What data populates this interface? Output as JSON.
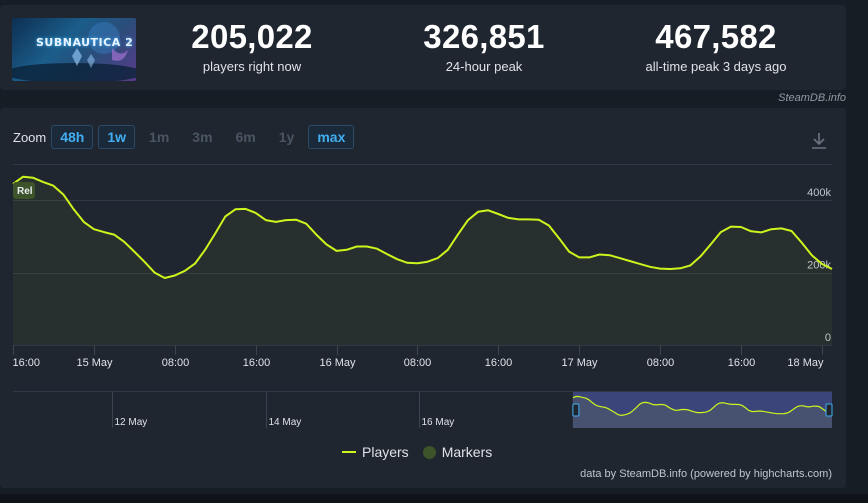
{
  "stats": {
    "current": {
      "value": "205,022",
      "label": "players right now"
    },
    "peak24": {
      "value": "326,851",
      "label": "24-hour peak"
    },
    "alltime": {
      "value": "467,582",
      "label": "all-time peak 3 days ago"
    }
  },
  "game": {
    "logo_text": "SUBNAUTICA 2"
  },
  "credit": "SteamDB.info",
  "zoom": {
    "label": "Zoom",
    "buttons": [
      {
        "label": "48h",
        "active": true
      },
      {
        "label": "1w",
        "active": true
      },
      {
        "label": "1m",
        "active": false
      },
      {
        "label": "3m",
        "active": false
      },
      {
        "label": "6m",
        "active": false
      },
      {
        "label": "1y",
        "active": false
      },
      {
        "label": "max",
        "active": true
      }
    ]
  },
  "marker_label": "Rel",
  "navigator_labels": [
    "12 May",
    "14 May",
    "16 May"
  ],
  "legend": {
    "players": "Players",
    "markers": "Markers"
  },
  "powered_by": "data by SteamDB.info (powered by highcharts.com)",
  "chart_data": {
    "type": "line",
    "title": "",
    "xlabel": "",
    "ylabel": "",
    "ylim": [
      0,
      500000
    ],
    "yticks": [
      0,
      200000,
      400000
    ],
    "ytick_labels": [
      "0",
      "200k",
      "400k"
    ],
    "xtick_labels": [
      "16:00",
      "15 May",
      "08:00",
      "16:00",
      "16 May",
      "08:00",
      "16:00",
      "17 May",
      "08:00",
      "16:00",
      "18 May"
    ],
    "x_hours": [
      0,
      8,
      16,
      24,
      32,
      40,
      48,
      56,
      64,
      72,
      80
    ],
    "series": [
      {
        "name": "Players",
        "color": "#ccf51d",
        "x": [
          0,
          1,
          2,
          3,
          4,
          5,
          6,
          7,
          8,
          9,
          10,
          11,
          12,
          13,
          14,
          15,
          16,
          17,
          18,
          19,
          20,
          21,
          22,
          23,
          24,
          25,
          26,
          27,
          28,
          29,
          30,
          31,
          32,
          33,
          34,
          35,
          36,
          37,
          38,
          39,
          40,
          41,
          42,
          43,
          44,
          45,
          46,
          47,
          48,
          49,
          50,
          51,
          52,
          53,
          54,
          55,
          56,
          57,
          58,
          59,
          60,
          61,
          62,
          63,
          64,
          65,
          66,
          67,
          68,
          69,
          70,
          71,
          72,
          73,
          74,
          75,
          76,
          77,
          78,
          79,
          80,
          81
        ],
        "y": [
          445000,
          465000,
          462000,
          450000,
          440000,
          415000,
          375000,
          340000,
          320000,
          312000,
          305000,
          285000,
          258000,
          230000,
          200000,
          185000,
          192000,
          205000,
          225000,
          263000,
          308000,
          355000,
          375000,
          376000,
          365000,
          345000,
          340000,
          345000,
          346000,
          335000,
          305000,
          278000,
          260000,
          263000,
          272000,
          272000,
          266000,
          251000,
          237000,
          227000,
          226000,
          230000,
          240000,
          263000,
          305000,
          345000,
          368000,
          372000,
          362000,
          351000,
          347000,
          347000,
          346000,
          330000,
          295000,
          258000,
          242000,
          242000,
          250000,
          248000,
          240000,
          232000,
          224000,
          216000,
          211000,
          210000,
          212000,
          220000,
          245000,
          278000,
          312000,
          327000,
          326000,
          314000,
          311000,
          320000,
          322000,
          315000,
          283000,
          248000,
          224000,
          210000
        ]
      }
    ],
    "markers": [
      {
        "x": 0,
        "label": "Rel"
      }
    ],
    "navigator_range_hours": [
      -175,
      81
    ],
    "grid": true,
    "legend_position": "bottom-center"
  }
}
